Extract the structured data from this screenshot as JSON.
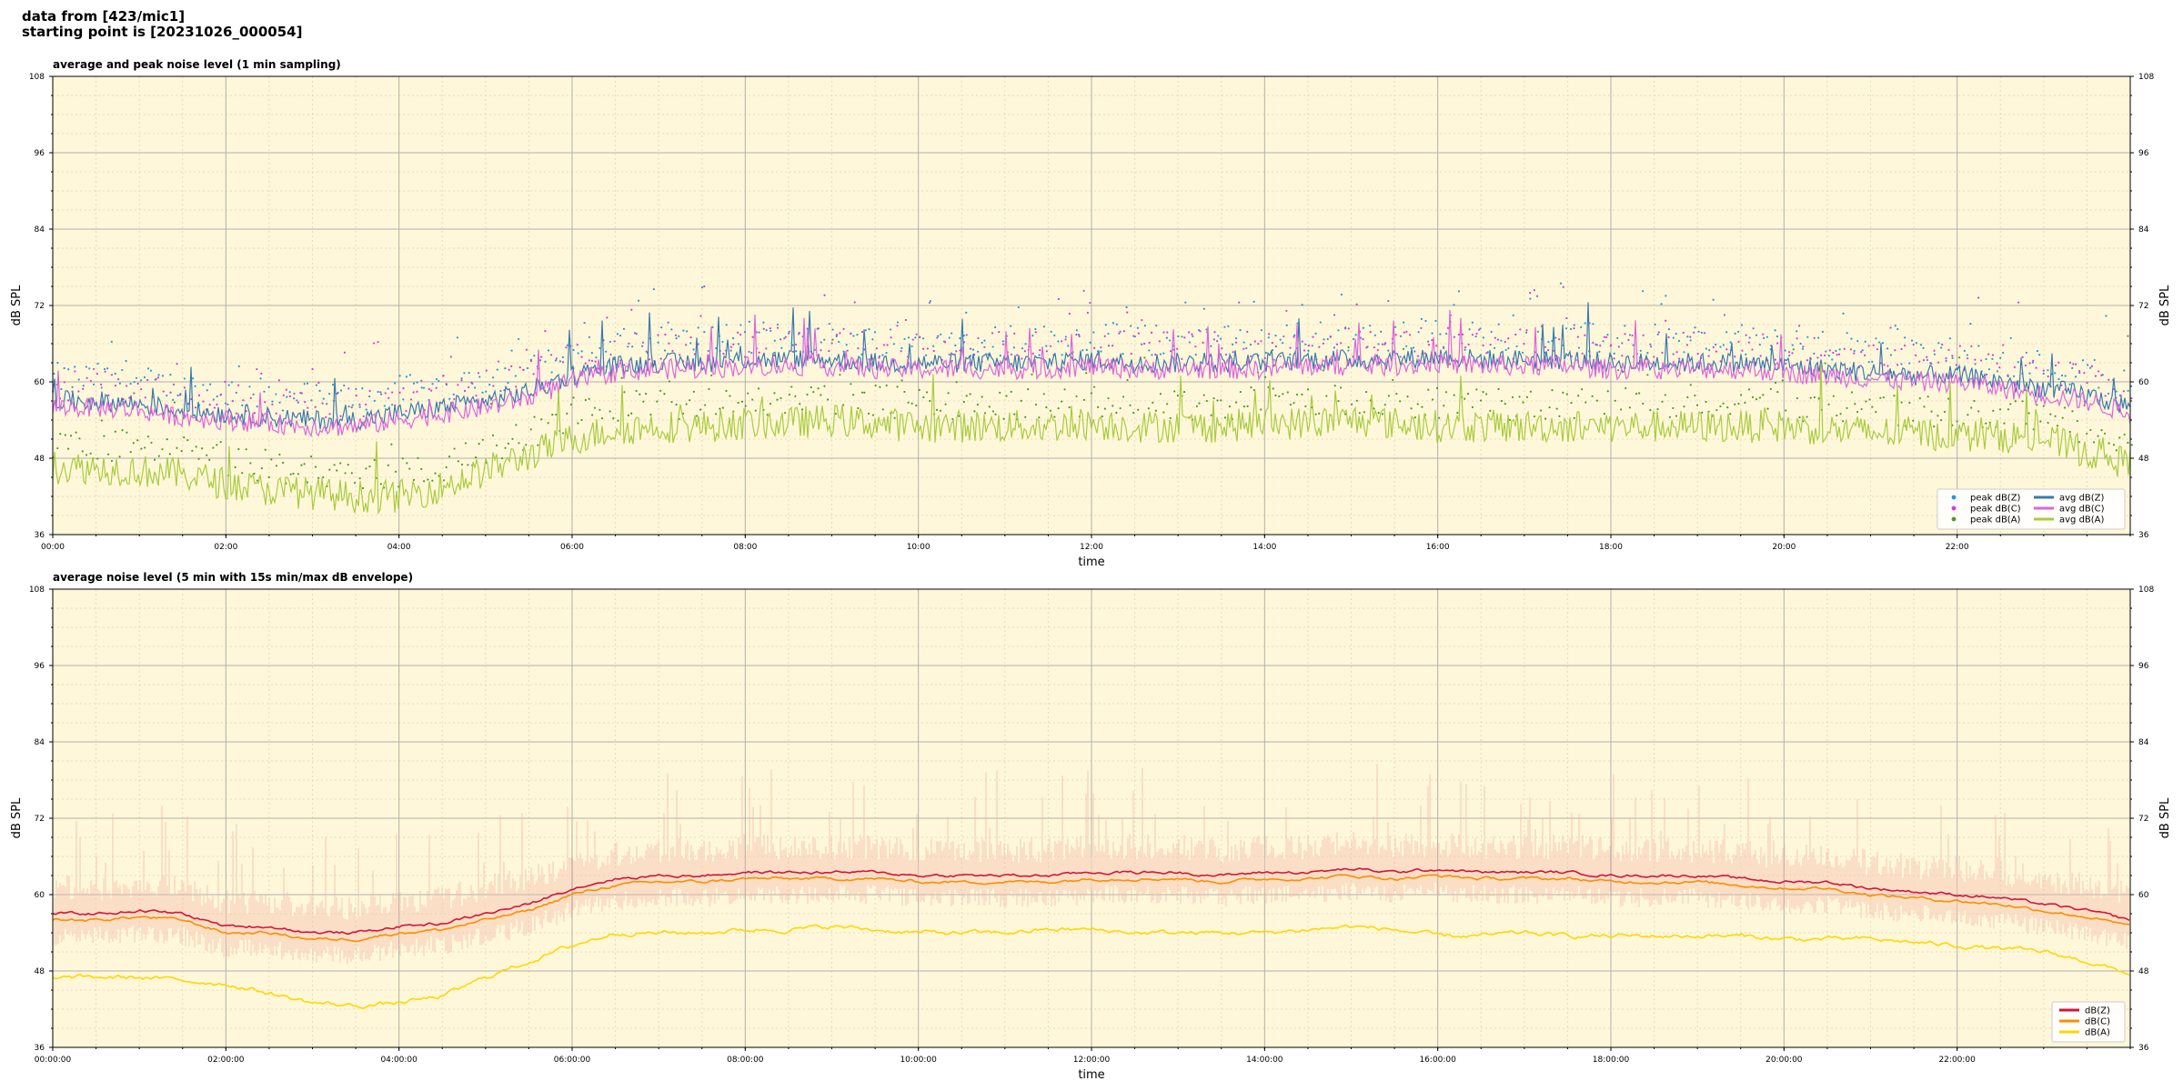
{
  "header": {
    "line1": "data from [423/mic1]",
    "line2": "starting point is [20231026_000054]"
  },
  "colors": {
    "plot_background": "#fff7d9",
    "grid_major": "#b0b0b0",
    "grid_minor": "#e6dcc0"
  },
  "chart_data": [
    {
      "type": "line",
      "title": "average and peak noise level (1 min sampling)",
      "xlabel": "time",
      "ylabel": "dB SPL",
      "xlim_hours": [
        0,
        24
      ],
      "ylim": [
        36,
        108
      ],
      "yticks": [
        36,
        48,
        60,
        72,
        84,
        96,
        108
      ],
      "xtick_labels": [
        "00:00",
        "02:00",
        "04:00",
        "06:00",
        "08:00",
        "10:00",
        "12:00",
        "14:00",
        "16:00",
        "18:00",
        "20:00",
        "22:00"
      ],
      "grid": true,
      "legend_position": "bottom-right",
      "legend": [
        {
          "label": "peak dB(Z)",
          "kind": "dot",
          "color": "#1f9bd8"
        },
        {
          "label": "peak dB(C)",
          "kind": "dot",
          "color": "#d63ad6"
        },
        {
          "label": "peak dB(A)",
          "kind": "dot",
          "color": "#4a9a2a"
        },
        {
          "label": "avg dB(Z)",
          "kind": "line",
          "color": "#3a7ab0"
        },
        {
          "label": "avg dB(C)",
          "kind": "line",
          "color": "#dd66dd"
        },
        {
          "label": "avg dB(A)",
          "kind": "line",
          "color": "#a8cc40"
        }
      ],
      "series": [
        {
          "name": "avg dB(Z)",
          "color": "#3a7ab0",
          "x": [
            0,
            0.5,
            1,
            1.5,
            2,
            2.5,
            3,
            3.5,
            4,
            4.5,
            5,
            5.5,
            6,
            6.5,
            7,
            7.5,
            8,
            8.5,
            9,
            9.5,
            10,
            10.5,
            11,
            11.5,
            12,
            12.5,
            13,
            13.5,
            14,
            14.5,
            15,
            15.5,
            16,
            16.5,
            17,
            17.5,
            18,
            18.5,
            19,
            19.5,
            20,
            20.5,
            21,
            21.5,
            22,
            22.5,
            23,
            23.5,
            24
          ],
          "values": [
            57,
            57,
            56.5,
            55.5,
            55,
            54.5,
            54,
            54,
            55,
            56,
            57,
            58.5,
            61,
            62.5,
            63,
            63,
            63.5,
            63.5,
            63.5,
            63,
            63,
            63,
            63,
            63,
            63.5,
            63,
            63,
            63,
            63,
            63.5,
            63.5,
            63.5,
            64,
            63.5,
            63.5,
            63.5,
            63,
            63,
            63,
            63,
            62.5,
            62,
            61.5,
            61,
            61,
            60,
            59,
            58,
            56
          ]
        },
        {
          "name": "avg dB(C)",
          "color": "#dd66dd",
          "x": [
            0,
            0.5,
            1,
            1.5,
            2,
            2.5,
            3,
            3.5,
            4,
            4.5,
            5,
            5.5,
            6,
            6.5,
            7,
            7.5,
            8,
            8.5,
            9,
            9.5,
            10,
            10.5,
            11,
            11.5,
            12,
            12.5,
            13,
            13.5,
            14,
            14.5,
            15,
            15.5,
            16,
            16.5,
            17,
            17.5,
            18,
            18.5,
            19,
            19.5,
            20,
            20.5,
            21,
            21.5,
            22,
            22.5,
            23,
            23.5,
            24
          ],
          "values": [
            56,
            56,
            55.5,
            54.5,
            54,
            53.5,
            53,
            53,
            54,
            55,
            56,
            57.5,
            60,
            61.5,
            62,
            62,
            62.5,
            62.5,
            62.5,
            62,
            62,
            62,
            62,
            62,
            62.5,
            62,
            62,
            62,
            62,
            62.5,
            62.5,
            62.5,
            63,
            62.5,
            62.5,
            62.5,
            62,
            62,
            62,
            62,
            61.5,
            61,
            60.5,
            60,
            60,
            59,
            58,
            57,
            55
          ]
        },
        {
          "name": "avg dB(A)",
          "color": "#a8cc40",
          "x": [
            0,
            0.5,
            1,
            1.5,
            2,
            2.5,
            3,
            3.5,
            4,
            4.5,
            5,
            5.5,
            6,
            6.5,
            7,
            7.5,
            8,
            8.5,
            9,
            9.5,
            10,
            10.5,
            11,
            11.5,
            12,
            12.5,
            13,
            13.5,
            14,
            14.5,
            15,
            15.5,
            16,
            16.5,
            17,
            17.5,
            18,
            18.5,
            19,
            19.5,
            20,
            20.5,
            21,
            21.5,
            22,
            22.5,
            23,
            23.5,
            24
          ],
          "values": [
            46.5,
            46.5,
            46,
            45.5,
            44,
            43,
            42.5,
            42,
            42,
            43.5,
            46,
            48.5,
            51,
            52.5,
            53,
            53,
            53.5,
            53.5,
            54,
            53.5,
            53,
            53,
            53,
            53,
            53.5,
            53,
            53,
            53,
            53.5,
            53.5,
            54,
            53.5,
            53,
            53,
            53,
            53,
            53,
            53,
            53,
            53,
            53,
            52.5,
            52,
            52,
            51.5,
            51.5,
            51,
            49,
            47
          ]
        }
      ]
    },
    {
      "type": "line",
      "title": "average noise level (5 min with 15s min/max dB envelope)",
      "xlabel": "time",
      "ylabel": "dB SPL",
      "xlim_hours": [
        0,
        24
      ],
      "ylim": [
        36,
        108
      ],
      "yticks": [
        36,
        48,
        60,
        72,
        84,
        96,
        108
      ],
      "xtick_labels": [
        "00:00:00",
        "02:00:00",
        "04:00:00",
        "06:00:00",
        "08:00:00",
        "10:00:00",
        "12:00:00",
        "14:00:00",
        "16:00:00",
        "18:00:00",
        "20:00:00",
        "22:00:00"
      ],
      "grid": true,
      "legend_position": "bottom-right",
      "legend": [
        {
          "label": "dB(Z)",
          "kind": "line",
          "color": "#d4143c"
        },
        {
          "label": "dB(C)",
          "kind": "line",
          "color": "#ff8c00"
        },
        {
          "label": "dB(A)",
          "kind": "line",
          "color": "#ffd700"
        }
      ],
      "envelope": {
        "color": "#f4b8a8",
        "upper_typical": 67,
        "lower_typical": 55
      },
      "series": [
        {
          "name": "dB(Z)",
          "color": "#d4143c",
          "x": [
            0,
            0.5,
            1,
            1.5,
            2,
            2.5,
            3,
            3.5,
            4,
            4.5,
            5,
            5.5,
            6,
            6.5,
            7,
            7.5,
            8,
            8.5,
            9,
            9.5,
            10,
            10.5,
            11,
            11.5,
            12,
            12.5,
            13,
            13.5,
            14,
            14.5,
            15,
            15.5,
            16,
            16.5,
            17,
            17.5,
            18,
            18.5,
            19,
            19.5,
            20,
            20.5,
            21,
            21.5,
            22,
            22.5,
            23,
            23.5,
            24
          ],
          "values": [
            57,
            57,
            57.5,
            57,
            55,
            55,
            54,
            54,
            55,
            55.5,
            57,
            58.5,
            61,
            62.5,
            63,
            63,
            63.5,
            63.5,
            63.5,
            63.5,
            63,
            63,
            63,
            63,
            63.5,
            63.5,
            63.5,
            63,
            63.5,
            63.5,
            64,
            63.5,
            64,
            63.5,
            63.5,
            63.5,
            63,
            63,
            63,
            62.5,
            62,
            62,
            61,
            60.5,
            60,
            59.5,
            58.5,
            57.5,
            56
          ]
        },
        {
          "name": "dB(C)",
          "color": "#ff8c00",
          "x": [
            0,
            0.5,
            1,
            1.5,
            2,
            2.5,
            3,
            3.5,
            4,
            4.5,
            5,
            5.5,
            6,
            6.5,
            7,
            7.5,
            8,
            8.5,
            9,
            9.5,
            10,
            10.5,
            11,
            11.5,
            12,
            12.5,
            13,
            13.5,
            14,
            14.5,
            15,
            15.5,
            16,
            16.5,
            17,
            17.5,
            18,
            18.5,
            19,
            19.5,
            20,
            20.5,
            21,
            21.5,
            22,
            22.5,
            23,
            23.5,
            24
          ],
          "values": [
            56,
            56,
            56.5,
            56,
            54,
            54,
            53,
            53,
            54,
            54.5,
            56,
            57.5,
            60,
            61.5,
            62,
            62,
            62.5,
            62.5,
            62.5,
            62.5,
            62,
            62,
            62,
            62,
            62.5,
            62.5,
            62.5,
            62,
            62.5,
            62.5,
            63,
            62.5,
            63,
            62.5,
            62.5,
            62.5,
            62,
            62,
            62,
            61.5,
            61,
            61,
            60,
            59.5,
            59,
            58.5,
            57.5,
            56.5,
            55
          ]
        },
        {
          "name": "dB(A)",
          "color": "#ffd700",
          "x": [
            0,
            0.5,
            1,
            1.5,
            2,
            2.5,
            3,
            3.5,
            4,
            4.5,
            5,
            5.5,
            6,
            6.5,
            7,
            7.5,
            8,
            8.5,
            9,
            9.5,
            10,
            10.5,
            11,
            11.5,
            12,
            12.5,
            13,
            13.5,
            14,
            14.5,
            15,
            15.5,
            16,
            16.5,
            17,
            17.5,
            18,
            18.5,
            19,
            19.5,
            20,
            20.5,
            21,
            21.5,
            22,
            22.5,
            23,
            23.5,
            24
          ],
          "values": [
            47,
            47,
            47,
            46.5,
            46,
            44.5,
            43,
            42.5,
            43,
            44,
            47,
            49.5,
            52,
            54,
            54,
            54,
            54.5,
            54.5,
            55,
            54.5,
            54,
            54,
            54,
            54.5,
            54.5,
            54,
            54,
            54,
            54,
            54.5,
            55,
            54.5,
            53.5,
            53.5,
            54,
            53.5,
            53.5,
            53.5,
            53.5,
            53.5,
            53,
            53,
            53,
            52.5,
            52,
            51.5,
            51,
            49.5,
            47.5
          ]
        }
      ]
    }
  ]
}
